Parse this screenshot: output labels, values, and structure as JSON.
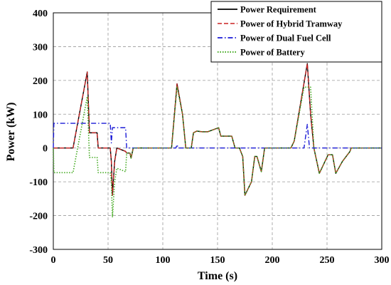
{
  "chart_data": {
    "type": "line",
    "title": "",
    "xlabel": "Time (s)",
    "ylabel": "Power (kW)",
    "xlim": [
      0,
      300
    ],
    "ylim": [
      -300,
      400
    ],
    "xticks": [
      "0",
      "50",
      "100",
      "150",
      "200",
      "250",
      "300"
    ],
    "yticks": [
      "-300",
      "-200",
      "-100",
      "0",
      "100",
      "200",
      "300",
      "400"
    ],
    "grid": true,
    "legend_position": "top-right",
    "series": [
      {
        "name": "Power Requirement",
        "color": "#000000",
        "style": "solid",
        "points": [
          [
            0,
            0
          ],
          [
            18,
            0
          ],
          [
            31,
            225
          ],
          [
            33,
            45
          ],
          [
            40,
            45
          ],
          [
            41,
            0
          ],
          [
            52,
            0
          ],
          [
            53,
            -40
          ],
          [
            54,
            -140
          ],
          [
            56,
            -40
          ],
          [
            58,
            0
          ],
          [
            66,
            -10
          ],
          [
            67,
            -15
          ],
          [
            70,
            -15
          ],
          [
            71,
            -30
          ],
          [
            72,
            -15
          ],
          [
            73,
            0
          ],
          [
            108,
            0
          ],
          [
            113,
            190
          ],
          [
            118,
            100
          ],
          [
            121,
            0
          ],
          [
            126,
            0
          ],
          [
            128,
            45
          ],
          [
            131,
            50
          ],
          [
            136,
            48
          ],
          [
            141,
            48
          ],
          [
            151,
            60
          ],
          [
            153,
            35
          ],
          [
            157,
            35
          ],
          [
            163,
            35
          ],
          [
            166,
            0
          ],
          [
            170,
            0
          ],
          [
            173,
            -25
          ],
          [
            175,
            -140
          ],
          [
            181,
            -100
          ],
          [
            184,
            -25
          ],
          [
            186,
            -25
          ],
          [
            190,
            -70
          ],
          [
            193,
            0
          ],
          [
            217,
            0
          ],
          [
            220,
            20
          ],
          [
            232,
            250
          ],
          [
            235,
            100
          ],
          [
            238,
            0
          ],
          [
            243,
            -75
          ],
          [
            251,
            -20
          ],
          [
            255,
            -20
          ],
          [
            258,
            -75
          ],
          [
            264,
            -40
          ],
          [
            271,
            -10
          ],
          [
            272,
            0
          ],
          [
            300,
            0
          ]
        ]
      },
      {
        "name": "Power of Hybrid Tramway",
        "color": "#cc2222",
        "style": "dash",
        "points": [
          [
            0,
            0
          ],
          [
            18,
            0
          ],
          [
            31,
            225
          ],
          [
            33,
            45
          ],
          [
            40,
            45
          ],
          [
            41,
            0
          ],
          [
            52,
            0
          ],
          [
            53,
            -40
          ],
          [
            54,
            -140
          ],
          [
            56,
            -40
          ],
          [
            58,
            0
          ],
          [
            66,
            -10
          ],
          [
            67,
            -15
          ],
          [
            70,
            -15
          ],
          [
            71,
            -30
          ],
          [
            72,
            -15
          ],
          [
            73,
            0
          ],
          [
            108,
            0
          ],
          [
            113,
            190
          ],
          [
            118,
            100
          ],
          [
            121,
            0
          ],
          [
            126,
            0
          ],
          [
            128,
            45
          ],
          [
            131,
            50
          ],
          [
            136,
            48
          ],
          [
            141,
            48
          ],
          [
            151,
            60
          ],
          [
            153,
            35
          ],
          [
            157,
            35
          ],
          [
            163,
            35
          ],
          [
            166,
            0
          ],
          [
            170,
            0
          ],
          [
            173,
            -25
          ],
          [
            175,
            -140
          ],
          [
            181,
            -100
          ],
          [
            184,
            -25
          ],
          [
            186,
            -25
          ],
          [
            190,
            -70
          ],
          [
            193,
            0
          ],
          [
            217,
            0
          ],
          [
            220,
            20
          ],
          [
            232,
            250
          ],
          [
            235,
            100
          ],
          [
            238,
            0
          ],
          [
            243,
            -75
          ],
          [
            251,
            -20
          ],
          [
            255,
            -20
          ],
          [
            258,
            -75
          ],
          [
            264,
            -40
          ],
          [
            271,
            -10
          ],
          [
            272,
            0
          ],
          [
            300,
            0
          ]
        ]
      },
      {
        "name": "Power of Dual Fuel Cell",
        "color": "#1a1ad6",
        "style": "dashdot",
        "points": [
          [
            0,
            0
          ],
          [
            0.5,
            73
          ],
          [
            52,
            73
          ],
          [
            53,
            15
          ],
          [
            54,
            60
          ],
          [
            66,
            60
          ],
          [
            67,
            0
          ],
          [
            112,
            0
          ],
          [
            113,
            10
          ],
          [
            114,
            0
          ],
          [
            229,
            0
          ],
          [
            232,
            70
          ],
          [
            234,
            0
          ],
          [
            300,
            0
          ]
        ]
      },
      {
        "name": "Power of Battery",
        "color": "#44aa22",
        "style": "dot",
        "points": [
          [
            0,
            0
          ],
          [
            0.5,
            -73
          ],
          [
            18,
            -73
          ],
          [
            31,
            152
          ],
          [
            33,
            -28
          ],
          [
            40,
            -28
          ],
          [
            41,
            -73
          ],
          [
            52,
            -73
          ],
          [
            53,
            -100
          ],
          [
            54,
            -205
          ],
          [
            56,
            -100
          ],
          [
            58,
            -60
          ],
          [
            66,
            -70
          ],
          [
            67,
            -15
          ],
          [
            70,
            -15
          ],
          [
            71,
            -30
          ],
          [
            72,
            -15
          ],
          [
            73,
            0
          ],
          [
            108,
            0
          ],
          [
            113,
            180
          ],
          [
            118,
            100
          ],
          [
            121,
            0
          ],
          [
            126,
            0
          ],
          [
            128,
            45
          ],
          [
            131,
            50
          ],
          [
            136,
            48
          ],
          [
            141,
            48
          ],
          [
            151,
            60
          ],
          [
            153,
            35
          ],
          [
            157,
            35
          ],
          [
            163,
            35
          ],
          [
            166,
            0
          ],
          [
            170,
            0
          ],
          [
            173,
            -25
          ],
          [
            175,
            -140
          ],
          [
            181,
            -100
          ],
          [
            184,
            -25
          ],
          [
            186,
            -25
          ],
          [
            190,
            -70
          ],
          [
            193,
            0
          ],
          [
            217,
            0
          ],
          [
            220,
            20
          ],
          [
            229,
            180
          ],
          [
            235,
            180
          ],
          [
            238,
            0
          ],
          [
            243,
            -75
          ],
          [
            251,
            -20
          ],
          [
            255,
            -20
          ],
          [
            258,
            -75
          ],
          [
            264,
            -40
          ],
          [
            271,
            -10
          ],
          [
            272,
            0
          ],
          [
            300,
            0
          ]
        ]
      }
    ]
  }
}
